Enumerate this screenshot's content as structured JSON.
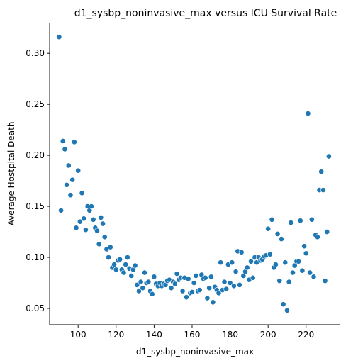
{
  "chart_data": {
    "type": "scatter",
    "title": "d1_sysbp_noninvasive_max versus ICU Survival Rate",
    "xlabel": "d1_sysbp_noninvasive_max",
    "ylabel": "Average Hostpital Death",
    "xlim": [
      85,
      238
    ],
    "ylim": [
      0.034,
      0.33
    ],
    "xticks": [
      100,
      120,
      140,
      160,
      180,
      200,
      220
    ],
    "yticks": [
      0.05,
      0.1,
      0.15,
      0.2,
      0.25,
      0.3
    ],
    "ytick_labels": [
      "0.05",
      "0.10",
      "0.15",
      "0.20",
      "0.25",
      "0.30"
    ],
    "grid": false,
    "legend": "none",
    "point_color": "#1f77b4",
    "points": [
      [
        90,
        0.316
      ],
      [
        91,
        0.146
      ],
      [
        92,
        0.214
      ],
      [
        93,
        0.206
      ],
      [
        94,
        0.171
      ],
      [
        95,
        0.19
      ],
      [
        96,
        0.161
      ],
      [
        97,
        0.176
      ],
      [
        98,
        0.213
      ],
      [
        99,
        0.129
      ],
      [
        100,
        0.185
      ],
      [
        101,
        0.135
      ],
      [
        102,
        0.163
      ],
      [
        103,
        0.138
      ],
      [
        104,
        0.127
      ],
      [
        105,
        0.15
      ],
      [
        106,
        0.146
      ],
      [
        107,
        0.15
      ],
      [
        108,
        0.137
      ],
      [
        109,
        0.129
      ],
      [
        110,
        0.126
      ],
      [
        111,
        0.113
      ],
      [
        112,
        0.139
      ],
      [
        113,
        0.133
      ],
      [
        114,
        0.12
      ],
      [
        115,
        0.108
      ],
      [
        116,
        0.1
      ],
      [
        117,
        0.11
      ],
      [
        118,
        0.09
      ],
      [
        119,
        0.093
      ],
      [
        120,
        0.088
      ],
      [
        121,
        0.097
      ],
      [
        122,
        0.098
      ],
      [
        123,
        0.088
      ],
      [
        124,
        0.085
      ],
      [
        125,
        0.093
      ],
      [
        126,
        0.1
      ],
      [
        127,
        0.089
      ],
      [
        128,
        0.082
      ],
      [
        129,
        0.088
      ],
      [
        130,
        0.092
      ],
      [
        131,
        0.073
      ],
      [
        132,
        0.067
      ],
      [
        133,
        0.076
      ],
      [
        134,
        0.07
      ],
      [
        135,
        0.085
      ],
      [
        136,
        0.075
      ],
      [
        137,
        0.076
      ],
      [
        138,
        0.067
      ],
      [
        139,
        0.064
      ],
      [
        140,
        0.081
      ],
      [
        141,
        0.074
      ],
      [
        142,
        0.072
      ],
      [
        143,
        0.075
      ],
      [
        144,
        0.072
      ],
      [
        145,
        0.074
      ],
      [
        146,
        0.073
      ],
      [
        147,
        0.077
      ],
      [
        148,
        0.078
      ],
      [
        149,
        0.07
      ],
      [
        150,
        0.076
      ],
      [
        151,
        0.074
      ],
      [
        152,
        0.084
      ],
      [
        153,
        0.078
      ],
      [
        154,
        0.08
      ],
      [
        155,
        0.067
      ],
      [
        156,
        0.08
      ],
      [
        157,
        0.061
      ],
      [
        158,
        0.079
      ],
      [
        159,
        0.065
      ],
      [
        160,
        0.066
      ],
      [
        161,
        0.075
      ],
      [
        162,
        0.082
      ],
      [
        163,
        0.067
      ],
      [
        164,
        0.068
      ],
      [
        165,
        0.083
      ],
      [
        166,
        0.079
      ],
      [
        167,
        0.08
      ],
      [
        168,
        0.06
      ],
      [
        169,
        0.07
      ],
      [
        170,
        0.081
      ],
      [
        171,
        0.056
      ],
      [
        172,
        0.071
      ],
      [
        173,
        0.068
      ],
      [
        174,
        0.065
      ],
      [
        175,
        0.095
      ],
      [
        176,
        0.068
      ],
      [
        177,
        0.076
      ],
      [
        178,
        0.069
      ],
      [
        179,
        0.093
      ],
      [
        180,
        0.075
      ],
      [
        181,
        0.095
      ],
      [
        182,
        0.072
      ],
      [
        183,
        0.086
      ],
      [
        184,
        0.106
      ],
      [
        185,
        0.073
      ],
      [
        186,
        0.105
      ],
      [
        187,
        0.082
      ],
      [
        188,
        0.086
      ],
      [
        189,
        0.09
      ],
      [
        190,
        0.078
      ],
      [
        191,
        0.096
      ],
      [
        192,
        0.08
      ],
      [
        193,
        0.1
      ],
      [
        194,
        0.095
      ],
      [
        195,
        0.1
      ],
      [
        196,
        0.097
      ],
      [
        197,
        0.098
      ],
      [
        198,
        0.101
      ],
      [
        199,
        0.102
      ],
      [
        200,
        0.128
      ],
      [
        201,
        0.103
      ],
      [
        202,
        0.137
      ],
      [
        203,
        0.09
      ],
      [
        204,
        0.093
      ],
      [
        205,
        0.123
      ],
      [
        206,
        0.077
      ],
      [
        207,
        0.118
      ],
      [
        208,
        0.054
      ],
      [
        209,
        0.095
      ],
      [
        210,
        0.048
      ],
      [
        211,
        0.076
      ],
      [
        212,
        0.134
      ],
      [
        213,
        0.085
      ],
      [
        214,
        0.092
      ],
      [
        215,
        0.096
      ],
      [
        216,
        0.096
      ],
      [
        217,
        0.136
      ],
      [
        218,
        0.087
      ],
      [
        219,
        0.111
      ],
      [
        220,
        0.104
      ],
      [
        221,
        0.241
      ],
      [
        222,
        0.085
      ],
      [
        223,
        0.137
      ],
      [
        224,
        0.081
      ],
      [
        225,
        0.122
      ],
      [
        226,
        0.12
      ],
      [
        227,
        0.166
      ],
      [
        228,
        0.184
      ],
      [
        229,
        0.166
      ],
      [
        230,
        0.077
      ],
      [
        231,
        0.125
      ],
      [
        232,
        0.199
      ]
    ]
  }
}
